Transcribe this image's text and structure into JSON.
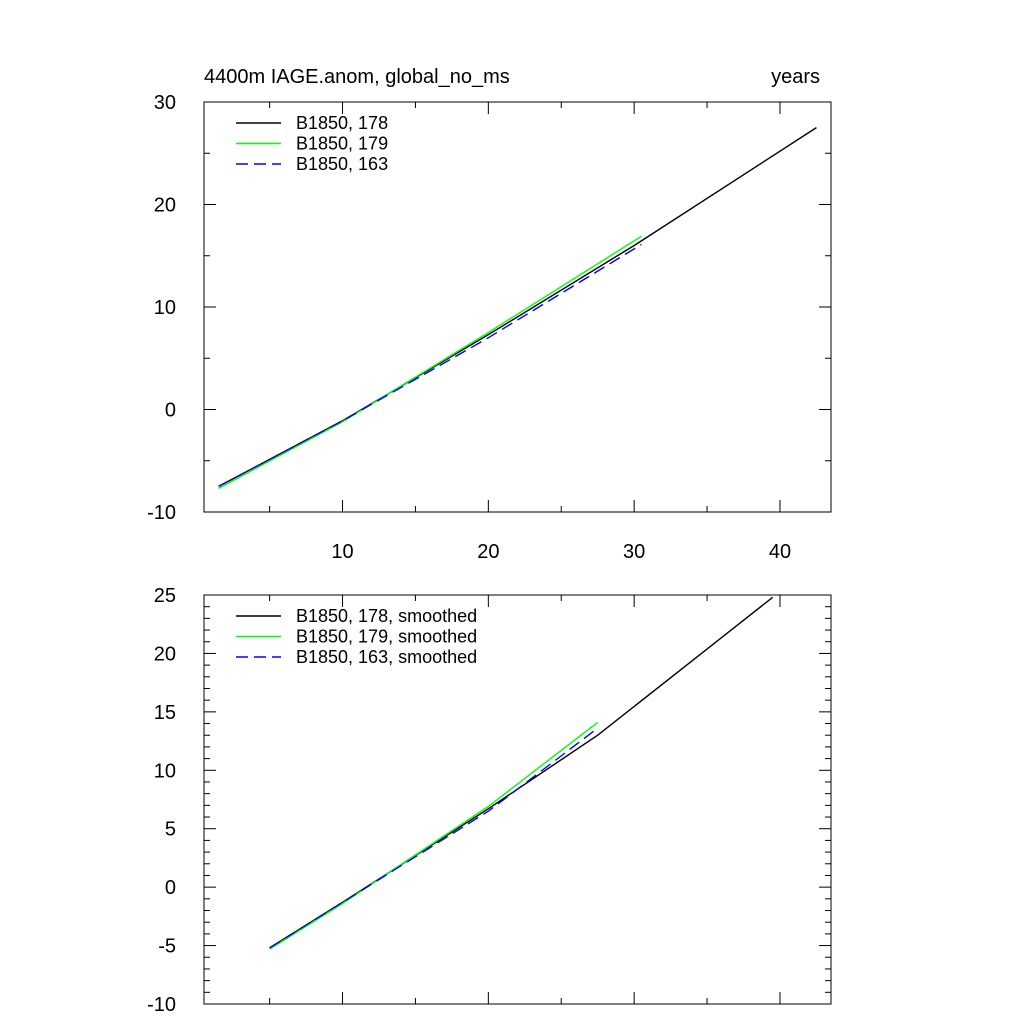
{
  "chart_data": [
    {
      "type": "line",
      "title": "4400m IAGE.anom, global_no_ms",
      "units": "years",
      "xlim": [
        0.5,
        43.5
      ],
      "ylim": [
        -10,
        30
      ],
      "xticks": [
        10,
        20,
        30,
        40
      ],
      "xtick_labels": [
        "10",
        "20",
        "30",
        "40"
      ],
      "show_xtick_labels": true,
      "yticks": [
        -10,
        0,
        10,
        20,
        30
      ],
      "ytick_labels": [
        "-10",
        "0",
        "10",
        "20",
        "30"
      ],
      "xminor": 2,
      "yminor": 2,
      "legend": "top-left",
      "grid": false,
      "series": [
        {
          "name": "B1850, 178",
          "color": "#000000",
          "dash": "solid",
          "x": [
            1.5,
            10,
            20,
            30,
            42.5
          ],
          "y": [
            -7.5,
            -1.1,
            7.3,
            16.0,
            27.5
          ]
        },
        {
          "name": "B1850, 179",
          "color": "#00ff00",
          "dash": "solid",
          "x": [
            1.5,
            10,
            20,
            30.5
          ],
          "y": [
            -7.7,
            -1.2,
            7.5,
            16.9
          ]
        },
        {
          "name": "B1850, 163",
          "color": "#0000ff",
          "dash": "dashed",
          "x": [
            1.5,
            10,
            20,
            30.5
          ],
          "y": [
            -7.5,
            -1.1,
            7.0,
            16.1
          ]
        }
      ]
    },
    {
      "type": "line",
      "title": "",
      "units": "",
      "xlim": [
        0.5,
        43.5
      ],
      "ylim": [
        -10,
        25
      ],
      "xticks": [
        10,
        20,
        30,
        40
      ],
      "xtick_labels": [
        "10",
        "20",
        "30",
        "40"
      ],
      "show_xtick_labels": false,
      "yticks": [
        -10,
        -5,
        0,
        5,
        10,
        15,
        20,
        25
      ],
      "ytick_labels": [
        "-10",
        "-5",
        "0",
        "5",
        "10",
        "15",
        "20",
        "25"
      ],
      "xminor": 2,
      "yminor": 5,
      "legend": "top-left",
      "grid": false,
      "series": [
        {
          "name": "B1850, 178, smoothed",
          "color": "#000000",
          "dash": "solid",
          "x": [
            5,
            10,
            20,
            27.5,
            39.5
          ],
          "y": [
            -5.2,
            -1.3,
            6.7,
            13.0,
            24.8
          ]
        },
        {
          "name": "B1850, 179, smoothed",
          "color": "#00ff00",
          "dash": "solid",
          "x": [
            5,
            10,
            20,
            27.5
          ],
          "y": [
            -5.3,
            -1.4,
            6.9,
            14.1
          ]
        },
        {
          "name": "B1850, 163, smoothed",
          "color": "#0000ff",
          "dash": "dashed",
          "x": [
            5,
            10,
            20,
            27.5
          ],
          "y": [
            -5.2,
            -1.3,
            6.5,
            13.6
          ]
        }
      ]
    }
  ]
}
